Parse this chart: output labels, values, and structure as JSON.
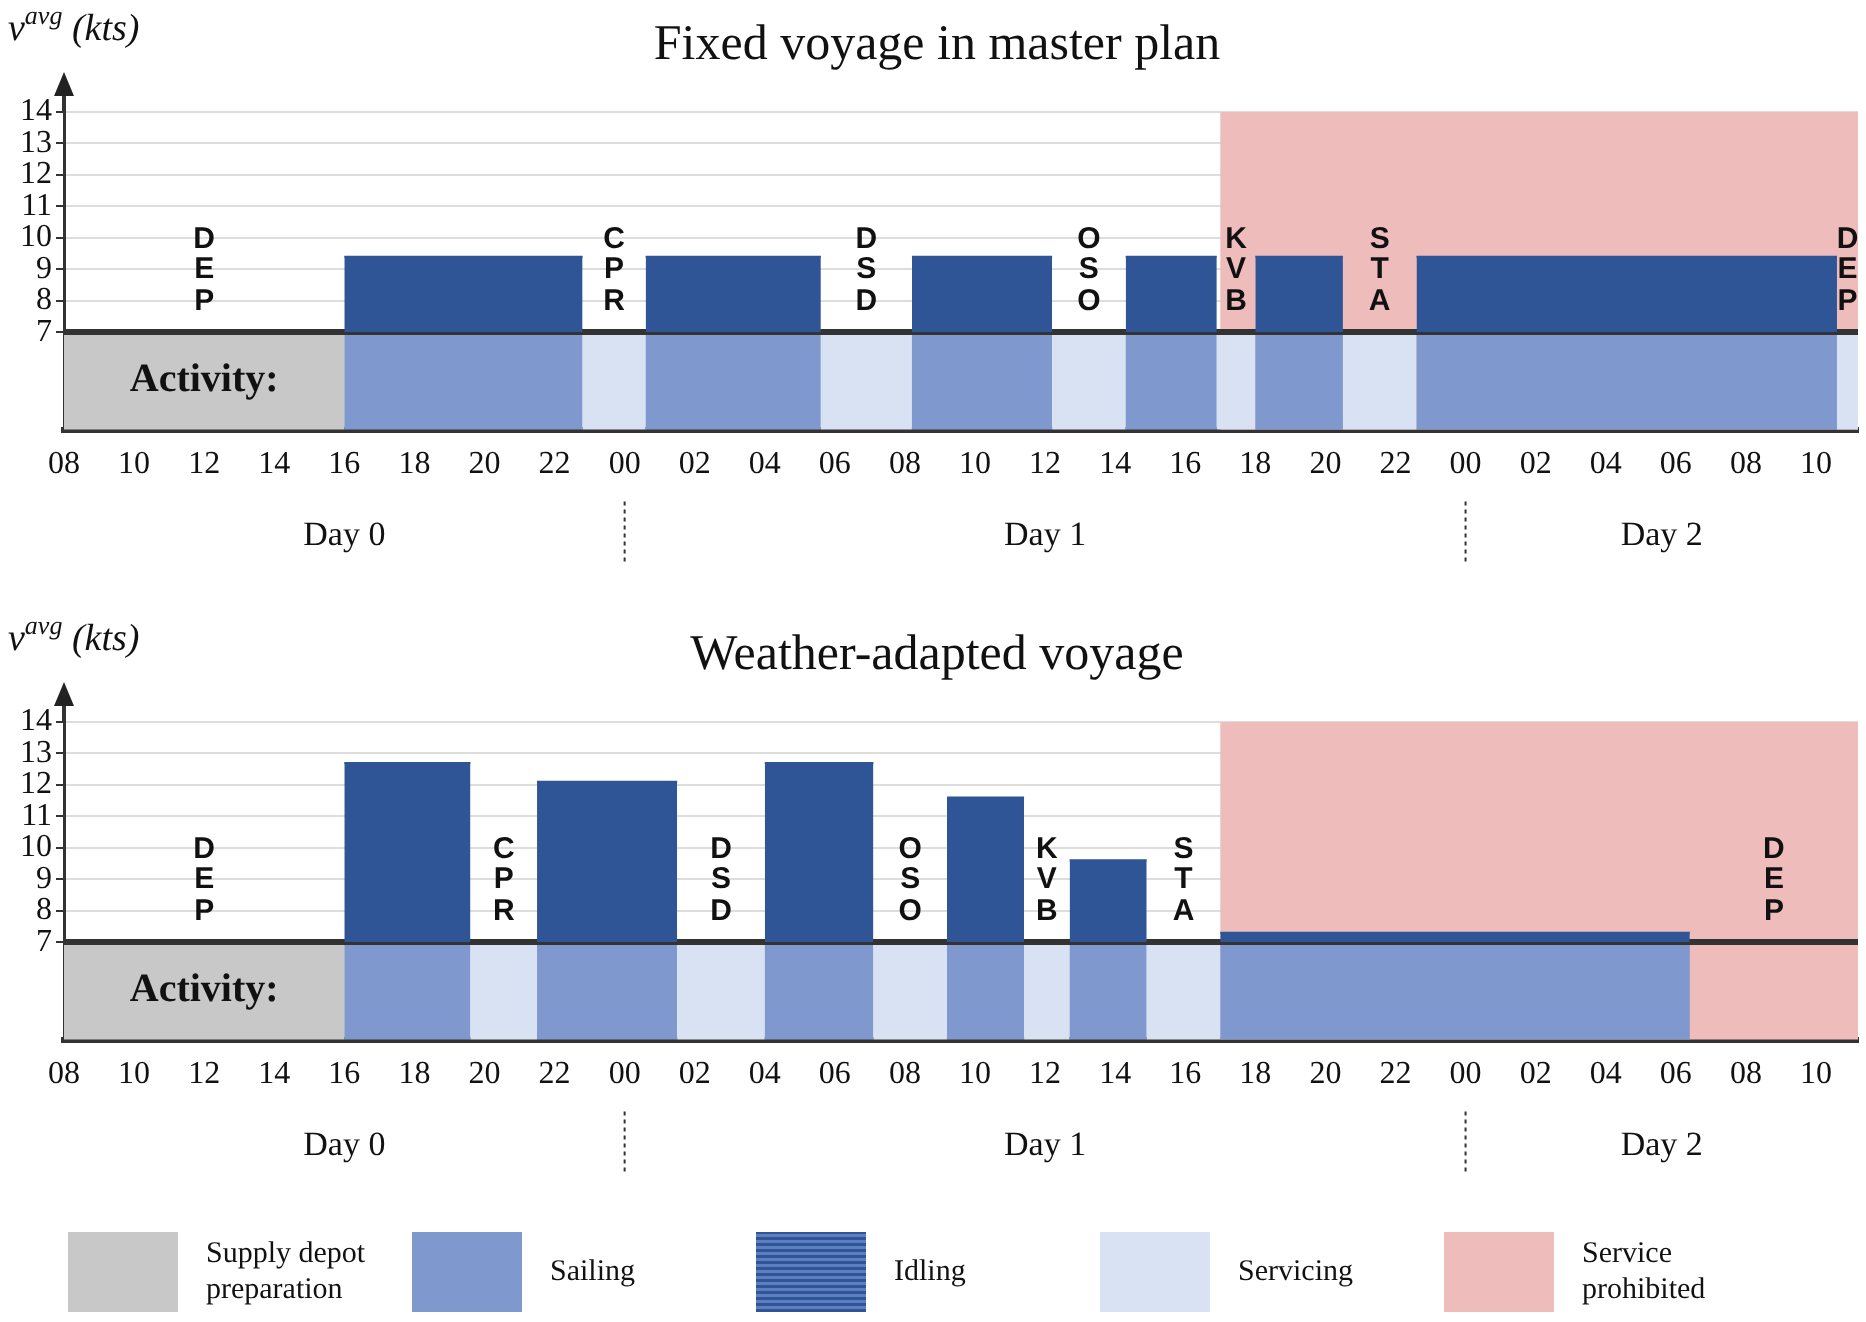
{
  "chart_data": [
    {
      "type": "area",
      "title": "Fixed voyage in master plan",
      "ylabel": "v$^{avg}$ (kts)",
      "xlim": [
        8,
        59.2
      ],
      "ylim": [
        3.9,
        14
      ],
      "yticks": [
        7,
        8,
        9,
        10,
        11,
        12,
        13,
        14
      ],
      "xticks": [
        {
          "value": 8,
          "label": "08"
        },
        {
          "value": 10,
          "label": "10"
        },
        {
          "value": 12,
          "label": "12"
        },
        {
          "value": 14,
          "label": "14"
        },
        {
          "value": 16,
          "label": "16"
        },
        {
          "value": 18,
          "label": "18"
        },
        {
          "value": 20,
          "label": "20"
        },
        {
          "value": 22,
          "label": "22"
        },
        {
          "value": 24,
          "label": "00"
        },
        {
          "value": 26,
          "label": "02"
        },
        {
          "value": 28,
          "label": "04"
        },
        {
          "value": 30,
          "label": "06"
        },
        {
          "value": 32,
          "label": "08"
        },
        {
          "value": 34,
          "label": "10"
        },
        {
          "value": 36,
          "label": "12"
        },
        {
          "value": 38,
          "label": "14"
        },
        {
          "value": 40,
          "label": "16"
        },
        {
          "value": 42,
          "label": "18"
        },
        {
          "value": 44,
          "label": "20"
        },
        {
          "value": 46,
          "label": "22"
        },
        {
          "value": 48,
          "label": "00"
        },
        {
          "value": 50,
          "label": "02"
        },
        {
          "value": 52,
          "label": "04"
        },
        {
          "value": 54,
          "label": "06"
        },
        {
          "value": 56,
          "label": "08"
        },
        {
          "value": 58,
          "label": "10"
        }
      ],
      "grid": "y",
      "ref_lines": [
        {
          "axis": "y",
          "value": 7,
          "color": "#333333"
        }
      ],
      "series": [
        {
          "color": "#2f5597",
          "x": [
            16,
            22.8
          ],
          "values": [
            9.4,
            9.4
          ]
        },
        {
          "color": "#2f5597",
          "x": [
            24.6,
            29.6
          ],
          "values": [
            9.4,
            9.4
          ]
        },
        {
          "color": "#2f5597",
          "x": [
            32.2,
            36.2
          ],
          "values": [
            9.4,
            9.4
          ]
        },
        {
          "color": "#2f5597",
          "x": [
            38.3,
            40.9
          ],
          "values": [
            9.4,
            9.4
          ]
        },
        {
          "color": "#2f5597",
          "x": [
            42.0,
            44.5
          ],
          "values": [
            9.4,
            9.4
          ]
        },
        {
          "color": "#2f5597",
          "x": [
            46.6,
            58.6
          ],
          "values": [
            9.4,
            9.4
          ]
        }
      ],
      "bands": [
        {
          "axis": "x",
          "from": 8,
          "to": 16,
          "color": "#c8c8c8"
        },
        {
          "axis": "x",
          "from": 16,
          "to": 22.8,
          "color": "#7f99cf"
        },
        {
          "axis": "x",
          "from": 22.8,
          "to": 24.6,
          "color": "#d9e2f3"
        },
        {
          "axis": "x",
          "from": 24.6,
          "to": 29.6,
          "color": "#7f99cf"
        },
        {
          "axis": "x",
          "from": 29.6,
          "to": 32.2,
          "color": "#d9e2f3"
        },
        {
          "axis": "x",
          "from": 32.2,
          "to": 36.2,
          "color": "#7f99cf"
        },
        {
          "axis": "x",
          "from": 36.2,
          "to": 38.3,
          "color": "#d9e2f3"
        },
        {
          "axis": "x",
          "from": 38.3,
          "to": 40.9,
          "color": "#7f99cf"
        },
        {
          "axis": "x",
          "from": 40.9,
          "to": 42.0,
          "color": "#d9e2f3"
        },
        {
          "axis": "x",
          "from": 42.0,
          "to": 44.5,
          "color": "#7f99cf"
        },
        {
          "axis": "x",
          "from": 44.5,
          "to": 46.6,
          "color": "#d9e2f3"
        },
        {
          "axis": "x",
          "from": 46.6,
          "to": 58.6,
          "color": "#7f99cf"
        },
        {
          "axis": "x",
          "from": 58.6,
          "to": 59.2,
          "color": "#d9e2f3"
        },
        {
          "axis": "x",
          "from": 41,
          "to": 59.2,
          "color": "#efbcbc"
        }
      ],
      "annotations": [
        "Activity:",
        "DEP",
        "CPR",
        "DSD",
        "OSO",
        "KVB",
        "STA",
        "DEP",
        "Day 0",
        "Day 1",
        "Day 2"
      ]
    },
    {
      "type": "area",
      "title": "Weather-adapted voyage",
      "ylabel": "v$^{avg}$ (kts)",
      "xlim": [
        8,
        59.2
      ],
      "ylim": [
        3.9,
        14
      ],
      "yticks": [
        7,
        8,
        9,
        10,
        11,
        12,
        13,
        14
      ],
      "xticks": [
        {
          "value": 8,
          "label": "08"
        },
        {
          "value": 10,
          "label": "10"
        },
        {
          "value": 12,
          "label": "12"
        },
        {
          "value": 14,
          "label": "14"
        },
        {
          "value": 16,
          "label": "16"
        },
        {
          "value": 18,
          "label": "18"
        },
        {
          "value": 20,
          "label": "20"
        },
        {
          "value": 22,
          "label": "22"
        },
        {
          "value": 24,
          "label": "00"
        },
        {
          "value": 26,
          "label": "02"
        },
        {
          "value": 28,
          "label": "04"
        },
        {
          "value": 30,
          "label": "06"
        },
        {
          "value": 32,
          "label": "08"
        },
        {
          "value": 34,
          "label": "10"
        },
        {
          "value": 36,
          "label": "12"
        },
        {
          "value": 38,
          "label": "14"
        },
        {
          "value": 40,
          "label": "16"
        },
        {
          "value": 42,
          "label": "18"
        },
        {
          "value": 44,
          "label": "20"
        },
        {
          "value": 46,
          "label": "22"
        },
        {
          "value": 48,
          "label": "00"
        },
        {
          "value": 50,
          "label": "02"
        },
        {
          "value": 52,
          "label": "04"
        },
        {
          "value": 54,
          "label": "06"
        },
        {
          "value": 56,
          "label": "08"
        },
        {
          "value": 58,
          "label": "10"
        }
      ],
      "grid": "y",
      "ref_lines": [
        {
          "axis": "y",
          "value": 7,
          "color": "#333333"
        }
      ],
      "series": [
        {
          "color": "#2f5597",
          "x": [
            16,
            19.6
          ],
          "values": [
            12.7,
            12.7
          ]
        },
        {
          "color": "#2f5597",
          "x": [
            21.5,
            25.5
          ],
          "values": [
            12.1,
            12.1
          ]
        },
        {
          "color": "#2f5597",
          "x": [
            28.0,
            31.1
          ],
          "values": [
            12.7,
            12.7
          ]
        },
        {
          "color": "#2f5597",
          "x": [
            33.2,
            35.4
          ],
          "values": [
            11.6,
            11.6
          ]
        },
        {
          "color": "#2f5597",
          "x": [
            36.7,
            38.9
          ],
          "values": [
            9.6,
            9.6
          ]
        },
        {
          "color": "#2f5597",
          "x": [
            41.0,
            54.4
          ],
          "values": [
            7.3,
            7.3
          ]
        }
      ],
      "bands": [
        {
          "axis": "x",
          "from": 8,
          "to": 16,
          "color": "#c8c8c8"
        },
        {
          "axis": "x",
          "from": 16,
          "to": 19.6,
          "color": "#7f99cf"
        },
        {
          "axis": "x",
          "from": 19.6,
          "to": 21.5,
          "color": "#d9e2f3"
        },
        {
          "axis": "x",
          "from": 21.5,
          "to": 25.5,
          "color": "#7f99cf"
        },
        {
          "axis": "x",
          "from": 25.5,
          "to": 28.0,
          "color": "#d9e2f3"
        },
        {
          "axis": "x",
          "from": 28.0,
          "to": 31.1,
          "color": "#7f99cf"
        },
        {
          "axis": "x",
          "from": 31.1,
          "to": 33.2,
          "color": "#d9e2f3"
        },
        {
          "axis": "x",
          "from": 33.2,
          "to": 35.4,
          "color": "#7f99cf"
        },
        {
          "axis": "x",
          "from": 35.4,
          "to": 36.7,
          "color": "#d9e2f3"
        },
        {
          "axis": "x",
          "from": 36.7,
          "to": 38.9,
          "color": "#7f99cf"
        },
        {
          "axis": "x",
          "from": 38.9,
          "to": 41.0,
          "color": "#d9e2f3"
        },
        {
          "axis": "x",
          "from": 41.0,
          "to": 54.4,
          "color": "#7f99cf"
        },
        {
          "axis": "x",
          "from": 41,
          "to": 59.2,
          "color": "#efbcbc"
        }
      ],
      "annotations": [
        "Activity:",
        "DEP",
        "CPR",
        "DSD",
        "OSO",
        "KVB",
        "STA",
        "DEP",
        "Day 0",
        "Day 1",
        "Day 2",
        "Supply depot preparation",
        "Sailing",
        "Idling",
        "Servicing",
        "Service prohibited"
      ]
    }
  ]
}
